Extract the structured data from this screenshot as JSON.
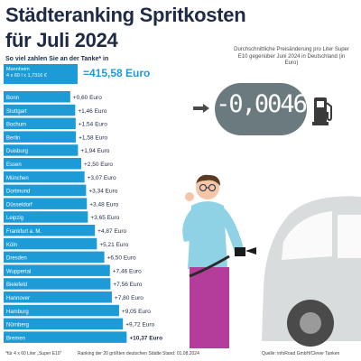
{
  "title": {
    "line1": "Städteranking Spritkosten",
    "line2": "für Juli 2024"
  },
  "question": "So viel zahlen Sie an der Tanke* in",
  "baseline": {
    "city": "Mannheim",
    "formula": "4 x 60 l x 1,7316 €",
    "value": "=415,58 Euro"
  },
  "caption": "Durchschnittliche Preisänderung pro Liter Super E10 gegenüber Juni 2024 in Deutschland (in Euro)",
  "price_change": "-0,0046",
  "colors": {
    "bar": "#1d9bd7",
    "title": "#1f2a44",
    "pill": "#6b7a7f"
  },
  "footer": {
    "note": "*für 4 x 60 Liter „Super E10\"",
    "ranking": "Ranking der 20 größten deutschen Städte",
    "date": "Stand: 01.08.2024",
    "source": "Quelle: infoRoad GmbH/Clever Tanken"
  },
  "chart_data": {
    "type": "bar",
    "categories": [
      "Bonn",
      "Stuttgart",
      "Bochum",
      "Berlin",
      "Duisburg",
      "Essen",
      "München",
      "Dortmund",
      "Düsseldorf",
      "Leipzig",
      "Frankfurt a. M.",
      "Köln",
      "Dresden",
      "Wuppertal",
      "Bielefeld",
      "Hannover",
      "Hamburg",
      "Nürnberg",
      "Bremen"
    ],
    "values": [
      0.6,
      1.46,
      1.54,
      1.58,
      1.94,
      2.5,
      3.07,
      3.34,
      3.48,
      3.65,
      4.87,
      5.21,
      6.5,
      7.46,
      7.56,
      7.8,
      9.05,
      9.72,
      10.37
    ],
    "labels": [
      "+0,60 Euro",
      "+1,46 Euro",
      "+1,54 Euro",
      "+1,58 Euro",
      "+1,94 Euro",
      "+2,50 Euro",
      "+3,07 Euro",
      "+3,34 Euro",
      "+3,48 Euro",
      "+3,65 Euro",
      "+4,87 Euro",
      "+5,21 Euro",
      "+6,50 Euro",
      "+7,46 Euro",
      "+7,56 Euro",
      "+7,80 Euro",
      "+9,05 Euro",
      "+9,72 Euro",
      "+10,37 Euro"
    ],
    "xlabel": "",
    "ylabel": ""
  }
}
